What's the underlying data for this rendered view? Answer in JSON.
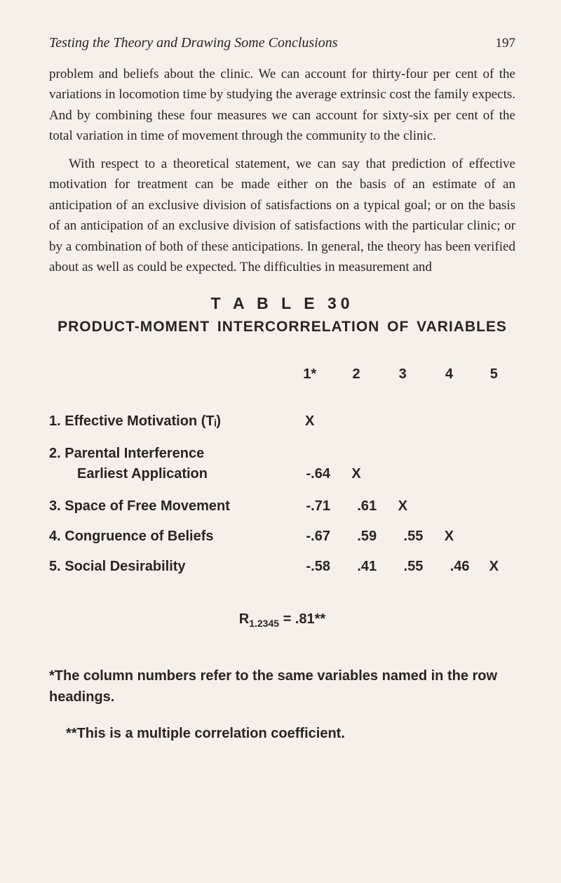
{
  "header": {
    "running_title": "Testing the Theory and Drawing Some Conclusions",
    "page_number": "197"
  },
  "paragraphs": {
    "p1": "problem and beliefs about the clinic. We can account for thirty-four per cent of the variations in locomotion time by studying the average extrinsic cost the family expects. And by combining these four measures we can account for sixty-six per cent of the total variation in time of movement through the community to the clinic.",
    "p2": "With respect to a theoretical statement, we can say that pre­diction of effective motivation for treatment can be made either on the basis of an estimate of an anticipation of an ex­clusive division of satisfactions on a typical goal; or on the basis of an anticipation of an exclusive division of satisfactions with the particular clinic; or by a combination of both of these an­ticipations. In general, the theory has been verified about as well as could be expected. The difficulties in measurement and"
  },
  "table": {
    "title": "T A B L E   30",
    "caption": "PRODUCT-MOMENT INTERCORRELATION OF VARIABLES",
    "col_headers": [
      "1*",
      "2",
      "3",
      "4",
      "5"
    ],
    "rows": [
      {
        "num": "1.",
        "label": "Effective Motivation (Tᵢ)",
        "cells": [
          "X",
          "",
          "",
          "",
          ""
        ]
      },
      {
        "num": "2.",
        "label_line1": "Parental Interference",
        "label_line2": "Earliest Application",
        "cells": [
          "-.64",
          "X",
          "",
          "",
          ""
        ]
      },
      {
        "num": "3.",
        "label": "Space of Free Movement",
        "cells": [
          "-.71",
          ".61",
          "X",
          "",
          ""
        ]
      },
      {
        "num": "4.",
        "label": "Congruence of Beliefs",
        "cells": [
          "-.67",
          ".59",
          ".55",
          "X",
          ""
        ]
      },
      {
        "num": "5.",
        "label": "Social Desirability",
        "cells": [
          "-.58",
          ".41",
          ".55",
          ".46",
          "X"
        ]
      }
    ],
    "formula_lhs_R": "R",
    "formula_sub": "1.2345",
    "formula_eq": " = ",
    "formula_rhs": ".81**"
  },
  "notes": {
    "n1": "*The column numbers refer to the same variables named in the row headings.",
    "n2": "**This is a multiple correlation coefficient."
  }
}
